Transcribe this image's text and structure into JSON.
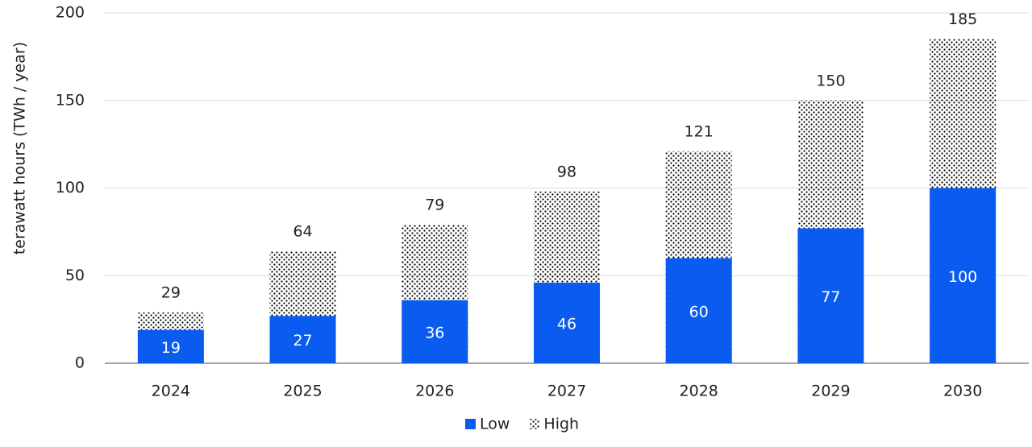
{
  "chart_data": {
    "type": "bar",
    "ylabel": "terawatt hours (TWh / year)",
    "categories": [
      "2024",
      "2025",
      "2026",
      "2027",
      "2028",
      "2029",
      "2030"
    ],
    "series": [
      {
        "name": "High",
        "color": "#000000",
        "pattern": "dots",
        "values": [
          29,
          64,
          79,
          98,
          121,
          150,
          185
        ]
      },
      {
        "name": "Low",
        "color": "#0a5cf0",
        "values": [
          19,
          27,
          36,
          46,
          60,
          77,
          100
        ]
      }
    ],
    "ylim": [
      0,
      200
    ],
    "yticks": [
      0,
      50,
      100,
      150,
      200
    ],
    "grid": true,
    "legend": "bottom"
  }
}
